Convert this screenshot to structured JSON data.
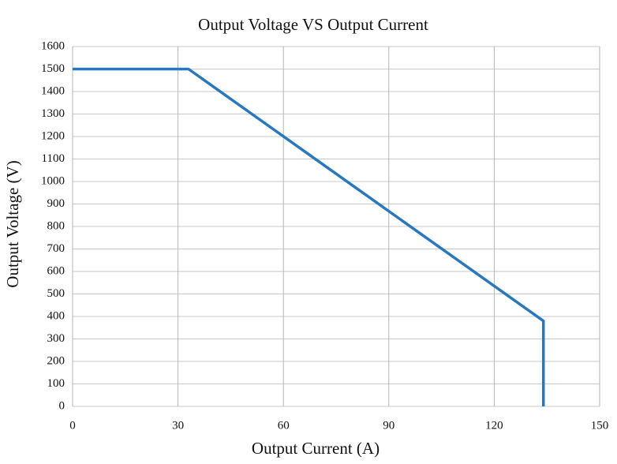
{
  "chart_data": {
    "type": "line",
    "title": "Output Voltage VS Output Current",
    "xlabel": "Output Current (A)",
    "ylabel": "Output Voltage (V)",
    "x": [
      0,
      33,
      134,
      134
    ],
    "series": [
      {
        "color": "#2878bd",
        "values": [
          1500,
          1500,
          380,
          0
        ]
      }
    ],
    "xlim": [
      0,
      150
    ],
    "xticks": [
      0,
      30,
      60,
      90,
      120,
      150
    ],
    "ylim": [
      0,
      1600
    ],
    "yticks": [
      0,
      100,
      200,
      300,
      400,
      500,
      600,
      700,
      800,
      900,
      1000,
      1100,
      1200,
      1300,
      1400,
      1500,
      1600
    ],
    "grid": true
  }
}
